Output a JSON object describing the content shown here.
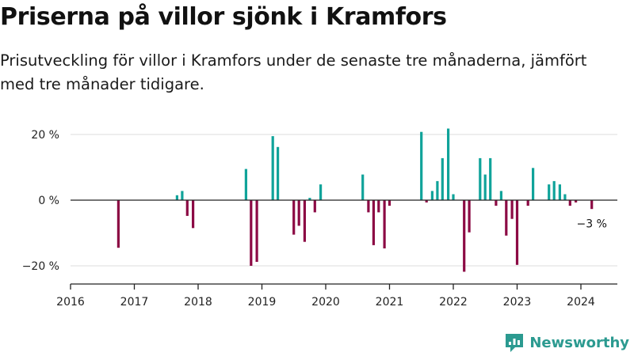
{
  "header": {
    "title": "Priserna på villor sjönk i Kramfors",
    "subtitle": "Prisutveckling för villor i Kramfors under de senaste tre månaderna, jämfört med tre månader tidigare."
  },
  "brand": {
    "name": "Newsworthy"
  },
  "colors": {
    "positive": "#10a39a",
    "negative": "#8c0a44",
    "logo": "#2b9a90"
  },
  "chart_data": {
    "type": "bar",
    "title": "Priserna på villor sjönk i Kramfors",
    "subtitle": "Prisutveckling för villor i Kramfors under de senaste tre månaderna, jämfört med tre månader tidigare.",
    "ylim": [
      -25,
      22
    ],
    "xlim": [
      2016.0,
      2024.58
    ],
    "y_ticks": [
      {
        "value": 20,
        "label": "20 %"
      },
      {
        "value": 0,
        "label": "0 %"
      },
      {
        "value": -20,
        "label": "−20 %"
      }
    ],
    "x_ticks": [
      "2016",
      "2017",
      "2018",
      "2019",
      "2020",
      "2021",
      "2022",
      "2023",
      "2024"
    ],
    "grid": true,
    "annotations": [
      {
        "x": 2024.17,
        "y": -3,
        "text": "−3 %"
      }
    ],
    "series": [
      {
        "values": [
          {
            "x": 2016.75,
            "y": -14.5
          },
          {
            "x": 2017.67,
            "y": 1.5
          },
          {
            "x": 2017.75,
            "y": 2.8
          },
          {
            "x": 2017.83,
            "y": -4.8
          },
          {
            "x": 2017.92,
            "y": -8.5
          },
          {
            "x": 2018.75,
            "y": 9.5
          },
          {
            "x": 2018.83,
            "y": -20.0
          },
          {
            "x": 2018.92,
            "y": -18.8
          },
          {
            "x": 2019.17,
            "y": 19.5
          },
          {
            "x": 2019.25,
            "y": 16.2
          },
          {
            "x": 2019.5,
            "y": -10.5
          },
          {
            "x": 2019.58,
            "y": -7.8
          },
          {
            "x": 2019.67,
            "y": -12.7
          },
          {
            "x": 2019.75,
            "y": 0.7
          },
          {
            "x": 2019.83,
            "y": -3.7
          },
          {
            "x": 2019.92,
            "y": 4.8
          },
          {
            "x": 2020.58,
            "y": 7.8
          },
          {
            "x": 2020.67,
            "y": -3.7
          },
          {
            "x": 2020.75,
            "y": -13.7
          },
          {
            "x": 2020.83,
            "y": -3.7
          },
          {
            "x": 2020.92,
            "y": -14.7
          },
          {
            "x": 2021.0,
            "y": -1.7
          },
          {
            "x": 2021.5,
            "y": 20.8
          },
          {
            "x": 2021.58,
            "y": -0.7
          },
          {
            "x": 2021.67,
            "y": 2.8
          },
          {
            "x": 2021.75,
            "y": 5.8
          },
          {
            "x": 2021.83,
            "y": 12.8
          },
          {
            "x": 2021.92,
            "y": 21.8
          },
          {
            "x": 2022.0,
            "y": 1.8
          },
          {
            "x": 2022.17,
            "y": -21.8
          },
          {
            "x": 2022.25,
            "y": -9.8
          },
          {
            "x": 2022.42,
            "y": 12.8
          },
          {
            "x": 2022.5,
            "y": 7.8
          },
          {
            "x": 2022.58,
            "y": 12.8
          },
          {
            "x": 2022.67,
            "y": -1.7
          },
          {
            "x": 2022.75,
            "y": 2.8
          },
          {
            "x": 2022.83,
            "y": -10.8
          },
          {
            "x": 2022.92,
            "y": -5.7
          },
          {
            "x": 2023.0,
            "y": -19.7
          },
          {
            "x": 2023.17,
            "y": -1.7
          },
          {
            "x": 2023.25,
            "y": 9.8
          },
          {
            "x": 2023.5,
            "y": 4.8
          },
          {
            "x": 2023.58,
            "y": 5.8
          },
          {
            "x": 2023.67,
            "y": 4.8
          },
          {
            "x": 2023.75,
            "y": 1.8
          },
          {
            "x": 2023.83,
            "y": -1.7
          },
          {
            "x": 2023.92,
            "y": -0.7
          },
          {
            "x": 2024.17,
            "y": -2.7
          }
        ]
      }
    ]
  }
}
